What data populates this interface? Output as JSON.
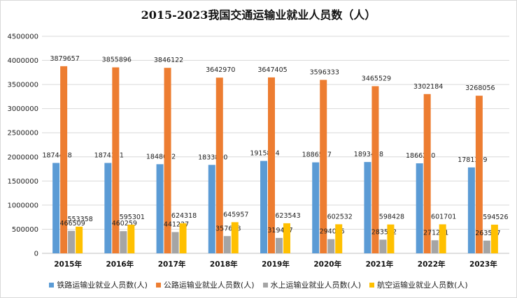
{
  "chart_data": {
    "type": "bar",
    "title": "2015-2023我国交通运输业就业人员数（人）",
    "xlabel": "",
    "ylabel": "",
    "ylim": [
      0,
      4500000
    ],
    "yticks": [
      "0",
      "500000",
      "1000000",
      "1500000",
      "2000000",
      "2500000",
      "3000000",
      "3500000",
      "4000000",
      "4500000"
    ],
    "categories": [
      "2015年",
      "2016年",
      "2017年",
      "2018年",
      "2019年",
      "2020年",
      "2021年",
      "2022年",
      "2023年"
    ],
    "grid": true,
    "legend_position": "bottom",
    "series": [
      {
        "name": "铁路运输业就业人员数(人)",
        "color": "#5b9bd5",
        "values": [
          1874448,
          1874131,
          1848032,
          1833800,
          1915824,
          1886517,
          1893458,
          1866230,
          1781369
        ]
      },
      {
        "name": "公路运输业就业人员数(人)",
        "color": "#ed7d31",
        "values": [
          3879657,
          3855896,
          3846122,
          3642970,
          3647405,
          3596333,
          3465529,
          3302184,
          3268056
        ]
      },
      {
        "name": "水上运输业就业人员数(人)",
        "color": "#a5a5a5",
        "values": [
          466509,
          460259,
          441227,
          357698,
          319477,
          294025,
          283592,
          271211,
          263567
        ]
      },
      {
        "name": "航空运输业就业人员数(人)",
        "color": "#ffc000",
        "values": [
          553358,
          595301,
          624318,
          645957,
          623543,
          602532,
          598428,
          601701,
          594526
        ]
      }
    ]
  }
}
